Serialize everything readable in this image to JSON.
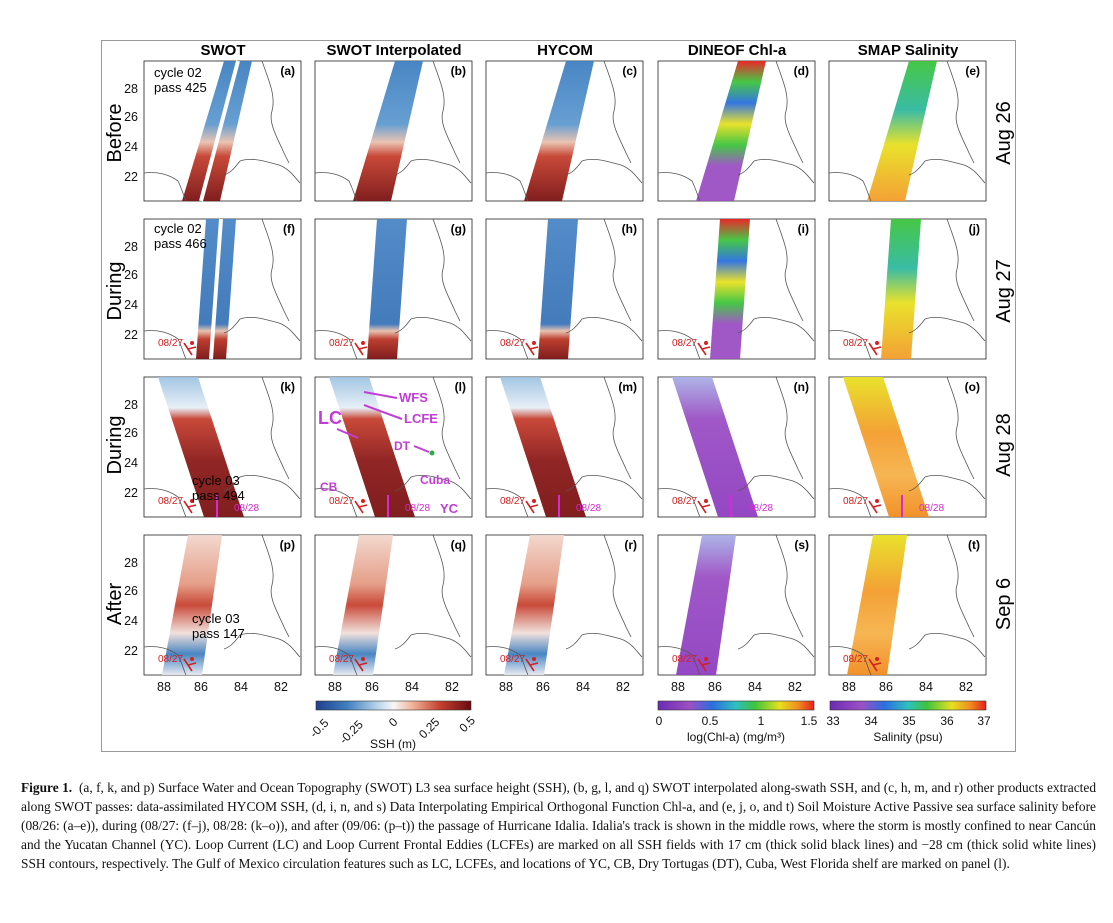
{
  "figure": {
    "columns": [
      "SWOT",
      "SWOT Interpolated",
      "HYCOM",
      "DINEOF Chl-a",
      "SMAP Salinity"
    ],
    "rows": [
      {
        "state": "Before",
        "date": "Aug 26",
        "letters": [
          "(a)",
          "(b)",
          "(c)",
          "(d)",
          "(e)"
        ]
      },
      {
        "state": "During",
        "date": "Aug 27",
        "letters": [
          "(f)",
          "(g)",
          "(h)",
          "(i)",
          "(j)"
        ]
      },
      {
        "state": "During",
        "date": "Aug 28",
        "letters": [
          "(k)",
          "(l)",
          "(m)",
          "(n)",
          "(o)"
        ]
      },
      {
        "state": "After",
        "date": "Sep 6",
        "letters": [
          "(p)",
          "(q)",
          "(r)",
          "(s)",
          "(t)"
        ]
      }
    ],
    "pass_notes": [
      {
        "cycle": "cycle 02",
        "pass": "pass 425"
      },
      {
        "cycle": "cycle 02",
        "pass": "pass 466"
      },
      {
        "cycle": "cycle 03",
        "pass": "pass 494"
      },
      {
        "cycle": "cycle 03",
        "pass": "pass 147"
      }
    ],
    "y_ticks": [
      "28",
      "26",
      "24",
      "22"
    ],
    "x_ticks": [
      "88",
      "86",
      "84",
      "82"
    ],
    "track_dates": {
      "aug27": "08/27",
      "aug28": "08/28"
    },
    "annotations": {
      "wfs": "WFS",
      "lcfe": "LCFE",
      "lc": "LC",
      "dt": "DT",
      "cb": "CB",
      "cuba": "Cuba",
      "yc": "YC"
    },
    "colorbars": [
      {
        "label": "SSH (m)",
        "ticks": [
          "-0.5",
          "-0.25",
          "0",
          "0.25",
          "0.5"
        ],
        "colormap": "blue-white-red"
      },
      {
        "label": "log(Chl-a) (mg/m³)",
        "ticks": [
          "0",
          "0.5",
          "1",
          "1.5"
        ],
        "colormap": "purple-blue-green-yellow-red"
      },
      {
        "label": "Salinity (psu)",
        "ticks": [
          "33",
          "34",
          "35",
          "36",
          "37"
        ],
        "colormap": "purple-blue-green-yellow-red"
      }
    ],
    "colors": {
      "ssh_neg": "#2166ac",
      "ssh_pos": "#8b1a1a",
      "chl_low": "#9b4fc4",
      "sal_mid": "#f39c2b",
      "annotation": "#c23dd6",
      "track": "#d42020"
    }
  },
  "caption": {
    "label": "Figure 1.",
    "text": "(a, f, k, and p) Surface Water and Ocean Topography (SWOT) L3 sea surface height (SSH), (b, g, l, and q) SWOT interpolated along-swath SSH, and (c, h, m, and r) other products extracted along SWOT passes: data-assimilated HYCOM SSH, (d, i, n, and s) Data Interpolating Empirical Orthogonal Function Chl-a, and (e, j, o, and t) Soil Moisture Active Passive sea surface salinity before (08/26: (a–e)), during (08/27: (f–j), 08/28: (k–o)), and after (09/06: (p–t)) the passage of Hurricane Idalia. Idalia's track is shown in the middle rows, where the storm is mostly confined to near Cancún and the Yucatan Channel (YC). Loop Current (LC) and Loop Current Frontal Eddies (LCFEs) are marked on all SSH fields with 17 cm (thick solid black lines) and −28 cm (thick solid white lines) SSH contours, respectively. The Gulf of Mexico circulation features such as LC, LCFEs, and locations of YC, CB, Dry Tortugas (DT), Cuba, West Florida shelf are marked on panel (l)."
  }
}
